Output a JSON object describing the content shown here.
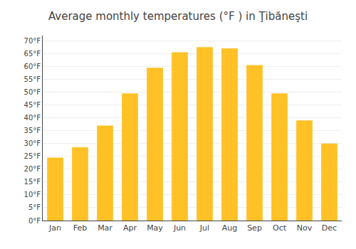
{
  "chart_data": {
    "type": "bar",
    "title": "Average monthly temperatures (°F ) in Ţibăneşti",
    "categories": [
      "Jan",
      "Feb",
      "Mar",
      "Apr",
      "May",
      "Jun",
      "Jul",
      "Aug",
      "Sep",
      "Oct",
      "Nov",
      "Dec"
    ],
    "values": [
      24.5,
      28.5,
      37.0,
      49.5,
      59.5,
      65.5,
      67.5,
      67.0,
      60.5,
      49.5,
      39.0,
      30.0
    ],
    "color": "#FFC125",
    "ylim": [
      0,
      72
    ],
    "yticks": [
      {
        "value": 0,
        "label": "0°F"
      },
      {
        "value": 5,
        "label": "5°F"
      },
      {
        "value": 10,
        "label": "10°F"
      },
      {
        "value": 15,
        "label": "15°F"
      },
      {
        "value": 20,
        "label": "20°F"
      },
      {
        "value": 25,
        "label": "25°F"
      },
      {
        "value": 30,
        "label": "30°F"
      },
      {
        "value": 35,
        "label": "35°F"
      },
      {
        "value": 40,
        "label": "40°F"
      },
      {
        "value": 45,
        "label": "45°F"
      },
      {
        "value": 50,
        "label": "50°F"
      },
      {
        "value": 55,
        "label": "55°F"
      },
      {
        "value": 60,
        "label": "60°F"
      },
      {
        "value": 65,
        "label": "65°F"
      },
      {
        "value": 70,
        "label": "70°F"
      }
    ],
    "grid": true
  }
}
